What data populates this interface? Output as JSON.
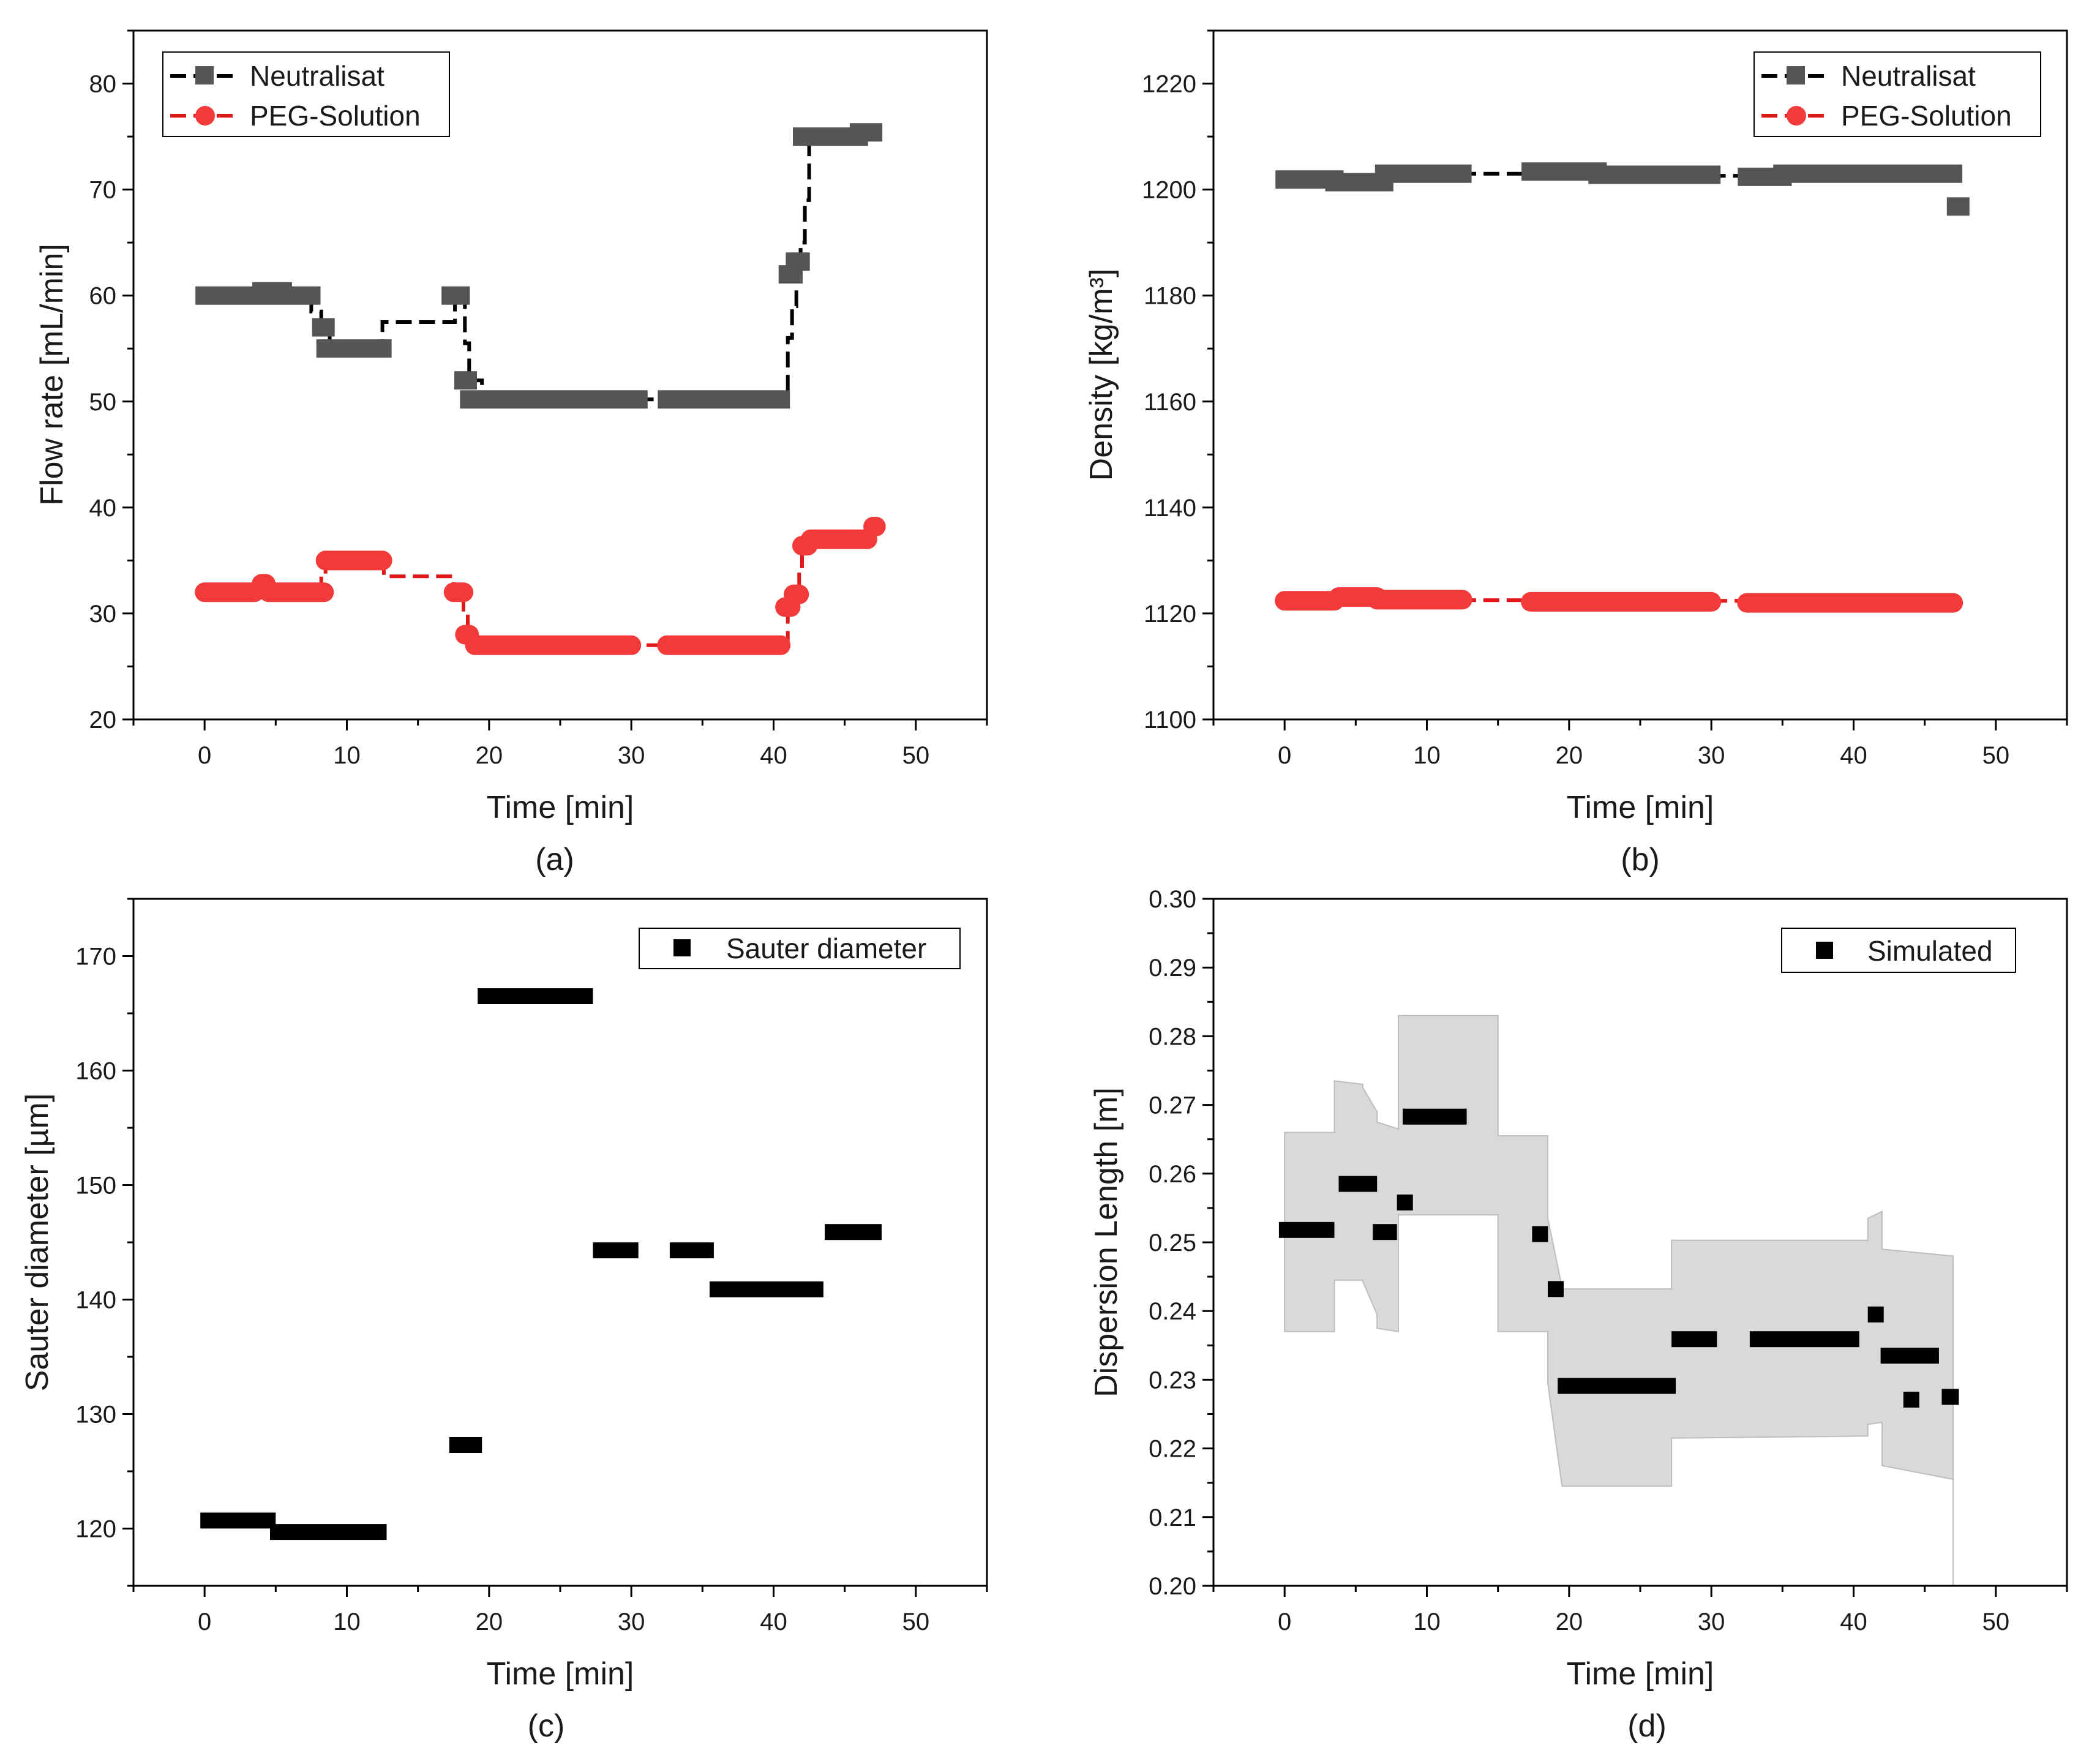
{
  "chart_data": [
    {
      "panel_label": "(a)",
      "type": "line",
      "xlabel": "Time [min]",
      "ylabel": "Flow rate [mL/min]",
      "xlim": [
        -5,
        55
      ],
      "ylim": [
        20,
        85
      ],
      "xticks": [
        0,
        10,
        20,
        30,
        40,
        50
      ],
      "yticks": [
        20,
        30,
        40,
        50,
        60,
        70,
        80
      ],
      "legend_position": "top-left",
      "colors": {
        "Neutralisat": "#555555",
        "PEG-Solution": "#f23a3a",
        "line_Neutralisat": "#000000",
        "line_PEG-Solution": "#e01818"
      },
      "series": [
        {
          "name": "Neutralisat",
          "marker": "square",
          "line_style": "dashed",
          "line_x": [
            0,
            1,
            2,
            3,
            4,
            5,
            6,
            7,
            7.5,
            8.2,
            8.8,
            9.5,
            11,
            12.5,
            12.5,
            15,
            17.5,
            17.6,
            18,
            18.3,
            18.6,
            19.5,
            25,
            30,
            32.5,
            35,
            38,
            40,
            40.6,
            41,
            41.3,
            41.6,
            41.9,
            42.2,
            42.5,
            44,
            46,
            47
          ],
          "line_y": [
            60,
            59.9,
            60,
            60.2,
            60.1,
            59.8,
            59.9,
            59.7,
            58.5,
            57,
            55,
            55,
            55,
            55,
            57.5,
            57.5,
            57.5,
            60,
            59.8,
            55.5,
            52,
            50.3,
            50.2,
            50.2,
            50.3,
            50.2,
            50.3,
            50.2,
            50.3,
            56,
            59,
            62,
            65,
            69,
            74.8,
            75,
            75.1,
            75.4
          ],
          "markers": [
            {
              "x0": 0,
              "x1": 7.5,
              "y": 60.0
            },
            {
              "x0": 4,
              "x1": 5.5,
              "y": 60.4
            },
            {
              "x0": 8.2,
              "x1": 8.5,
              "y": 57.0
            },
            {
              "x0": 8.5,
              "x1": 12.5,
              "y": 55.0
            },
            {
              "x0": 17.3,
              "x1": 18.0,
              "y": 60.0
            },
            {
              "x0": 18.2,
              "x1": 18.5,
              "y": 52.0
            },
            {
              "x0": 18.6,
              "x1": 30.5,
              "y": 50.2
            },
            {
              "x0": 32.5,
              "x1": 40.5,
              "y": 50.2
            },
            {
              "x0": 41.0,
              "x1": 41.4,
              "y": 62.0
            },
            {
              "x0": 41.5,
              "x1": 41.9,
              "y": 63.2
            },
            {
              "x0": 42.0,
              "x1": 46.0,
              "y": 75.0
            },
            {
              "x0": 46.0,
              "x1": 47.0,
              "y": 75.4
            }
          ]
        },
        {
          "name": "PEG-Solution",
          "marker": "circle",
          "line_style": "dashed",
          "line_x": [
            0,
            4,
            5,
            7.5,
            8.2,
            8.5,
            12.5,
            12.6,
            15,
            17.2,
            17.5,
            18,
            18.2,
            18.5,
            19,
            25,
            30,
            32.5,
            38,
            40.6,
            41,
            41.5,
            41.8,
            42.0,
            42.3,
            44,
            46.5,
            47
          ],
          "line_y": [
            32,
            32,
            32,
            32,
            33.5,
            35,
            35,
            33.5,
            33.5,
            33.5,
            32,
            32,
            30,
            28,
            27,
            27,
            27,
            27,
            27,
            27,
            30.6,
            31.8,
            34,
            36.5,
            37,
            37,
            37,
            38
          ],
          "markers": [
            {
              "x0": 0,
              "x1": 3.5,
              "y": 32.0
            },
            {
              "x0": 4.0,
              "x1": 4.3,
              "y": 32.8
            },
            {
              "x0": 4.5,
              "x1": 8.4,
              "y": 32.0
            },
            {
              "x0": 8.5,
              "x1": 12.5,
              "y": 35.0
            },
            {
              "x0": 17.5,
              "x1": 18.2,
              "y": 32.0
            },
            {
              "x0": 18.3,
              "x1": 18.6,
              "y": 28.0
            },
            {
              "x0": 19.0,
              "x1": 30.0,
              "y": 27.0
            },
            {
              "x0": 32.5,
              "x1": 40.5,
              "y": 27.0
            },
            {
              "x0": 40.8,
              "x1": 41.2,
              "y": 30.6
            },
            {
              "x0": 41.4,
              "x1": 41.8,
              "y": 31.8
            },
            {
              "x0": 42.0,
              "x1": 42.4,
              "y": 36.4
            },
            {
              "x0": 42.6,
              "x1": 46.6,
              "y": 37.0
            },
            {
              "x0": 47.0,
              "x1": 47.2,
              "y": 38.2
            }
          ]
        }
      ]
    },
    {
      "panel_label": "(b)",
      "type": "line",
      "xlabel": "Time [min]",
      "ylabel": "Density [kg/m³]",
      "xlim": [
        -5,
        55
      ],
      "ylim": [
        1100,
        1230
      ],
      "xticks": [
        0,
        10,
        20,
        30,
        40,
        50
      ],
      "yticks": [
        1100,
        1120,
        1140,
        1160,
        1180,
        1200,
        1220
      ],
      "legend_position": "top-right",
      "colors": {
        "Neutralisat": "#555555",
        "PEG-Solution": "#f23a3a",
        "line_Neutralisat": "#000000",
        "line_PEG-Solution": "#e01818"
      },
      "series": [
        {
          "name": "Neutralisat",
          "marker": "square",
          "line_style": "dashed",
          "line_x": [
            0,
            3,
            6,
            7,
            9,
            12.5,
            15,
            17.5,
            20,
            25,
            30,
            32.5,
            35,
            40,
            44,
            47
          ],
          "line_y": [
            1202,
            1201.5,
            1201.5,
            1203,
            1203,
            1203,
            1203,
            1203.4,
            1203,
            1202.8,
            1202.6,
            1202.4,
            1203,
            1203,
            1203,
            1202
          ],
          "markers": [
            {
              "x0": 0,
              "x1": 3.5,
              "y": 1201.9
            },
            {
              "x0": 3.5,
              "x1": 7.0,
              "y": 1201.4
            },
            {
              "x0": 7.0,
              "x1": 12.5,
              "y": 1203.0
            },
            {
              "x0": 17.3,
              "x1": 22.0,
              "y": 1203.4
            },
            {
              "x0": 22.0,
              "x1": 30.0,
              "y": 1202.8
            },
            {
              "x0": 32.5,
              "x1": 35.0,
              "y": 1202.4
            },
            {
              "x0": 35.0,
              "x1": 47.0,
              "y": 1203.0
            },
            {
              "x0": 47.2,
              "x1": 47.5,
              "y": 1196.8
            }
          ]
        },
        {
          "name": "PEG-Solution",
          "marker": "circle",
          "line_style": "dashed",
          "line_x": [
            0,
            3,
            4,
            7,
            12.5,
            15,
            17.5,
            20,
            25,
            30,
            32.5,
            40,
            41,
            47
          ],
          "line_y": [
            1122.5,
            1122.2,
            1123.2,
            1122.8,
            1122.5,
            1122.5,
            1122.3,
            1122,
            1122.2,
            1122.4,
            1121.9,
            1122,
            1121.6,
            1122
          ],
          "markers": [
            {
              "x0": 0,
              "x1": 3.5,
              "y": 1122.4
            },
            {
              "x0": 3.8,
              "x1": 6.5,
              "y": 1123.1
            },
            {
              "x0": 6.5,
              "x1": 12.5,
              "y": 1122.6
            },
            {
              "x0": 17.3,
              "x1": 30.0,
              "y": 1122.2
            },
            {
              "x0": 32.5,
              "x1": 47.0,
              "y": 1122.0
            }
          ]
        }
      ]
    },
    {
      "panel_label": "(c)",
      "type": "scatter",
      "xlabel": "Time [min]",
      "ylabel": "Sauter diameter [µm]",
      "xlim": [
        -5,
        55
      ],
      "ylim": [
        115,
        175
      ],
      "xticks": [
        0,
        10,
        20,
        30,
        40,
        50
      ],
      "yticks": [
        120,
        130,
        140,
        150,
        160,
        170
      ],
      "legend_position": "top-right",
      "colors": {
        "Sauter diameter": "#000000"
      },
      "series": [
        {
          "name": "Sauter diameter",
          "marker": "square",
          "segments": [
            {
              "x0": -0.3,
              "x1": 5.0,
              "y": 120.7
            },
            {
              "x0": 4.6,
              "x1": 12.8,
              "y": 119.7
            },
            {
              "x0": 17.2,
              "x1": 19.5,
              "y": 127.3
            },
            {
              "x0": 19.2,
              "x1": 27.3,
              "y": 166.5
            },
            {
              "x0": 27.3,
              "x1": 30.5,
              "y": 144.3
            },
            {
              "x0": 32.7,
              "x1": 35.8,
              "y": 144.3
            },
            {
              "x0": 35.5,
              "x1": 43.5,
              "y": 140.9
            },
            {
              "x0": 43.6,
              "x1": 47.6,
              "y": 145.9
            }
          ]
        }
      ]
    },
    {
      "panel_label": "(d)",
      "type": "area",
      "xlabel": "Time [min]",
      "ylabel": "Dispersion Length [m]",
      "xlim": [
        -5,
        55
      ],
      "ylim": [
        0.2,
        0.3
      ],
      "xticks": [
        0,
        10,
        20,
        30,
        40,
        50
      ],
      "yticks": [
        0.2,
        0.21,
        0.22,
        0.23,
        0.24,
        0.25,
        0.26,
        0.27,
        0.28,
        0.29,
        0.3
      ],
      "ytick_labels": [
        "0.20",
        "0.21",
        "0.22",
        "0.23",
        "0.24",
        "0.25",
        "0.26",
        "0.27",
        "0.28",
        "0.29",
        "0.30"
      ],
      "legend_position": "top-right",
      "colors": {
        "Simulated": "#000000",
        "band": "#d9d9d9",
        "band_edge": "#bdbdbd"
      },
      "band": {
        "x": [
          0,
          3.5,
          3.5,
          5.5,
          5.5,
          6.5,
          6.5,
          8.0,
          8.0,
          15.0,
          15.0,
          18.5,
          18.5,
          19.5,
          19.5,
          27.2,
          27.2,
          41.0,
          41.0,
          42.0,
          42.0,
          47.0,
          47.0
        ],
        "upper": [
          0.266,
          0.266,
          0.2735,
          0.273,
          0.2725,
          0.269,
          0.2675,
          0.2665,
          0.283,
          0.283,
          0.2655,
          0.2655,
          0.2535,
          0.2435,
          0.2432,
          0.2432,
          0.2503,
          0.2503,
          0.2535,
          0.2545,
          0.249,
          0.248,
          0.2422
        ],
        "lower": [
          0.237,
          0.237,
          0.2445,
          0.2445,
          0.2443,
          0.2395,
          0.2375,
          0.237,
          0.254,
          0.254,
          0.237,
          0.237,
          0.2295,
          0.2145,
          0.2145,
          0.2145,
          0.2215,
          0.2218,
          0.2235,
          0.2238,
          0.2175,
          0.2155,
          0.2
        ]
      },
      "series": [
        {
          "name": "Simulated",
          "marker": "square",
          "segments": [
            {
              "x0": -0.4,
              "x1": 3.5,
              "y": 0.2518
            },
            {
              "x0": 3.8,
              "x1": 6.5,
              "y": 0.2585
            },
            {
              "x0": 6.2,
              "x1": 7.9,
              "y": 0.2515
            },
            {
              "x0": 7.9,
              "x1": 8.4,
              "y": 0.2558
            },
            {
              "x0": 8.3,
              "x1": 12.8,
              "y": 0.2683
            },
            {
              "x0": 17.4,
              "x1": 18.5,
              "y": 0.2512
            },
            {
              "x0": 18.5,
              "x1": 19.3,
              "y": 0.2432
            },
            {
              "x0": 19.2,
              "x1": 27.5,
              "y": 0.2291
            },
            {
              "x0": 27.2,
              "x1": 30.4,
              "y": 0.2359
            },
            {
              "x0": 32.7,
              "x1": 40.4,
              "y": 0.2359
            },
            {
              "x0": 41.0,
              "x1": 41.9,
              "y": 0.2395
            },
            {
              "x0": 41.9,
              "x1": 46.0,
              "y": 0.2335
            },
            {
              "x0": 43.5,
              "x1": 44.0,
              "y": 0.2271
            },
            {
              "x0": 46.2,
              "x1": 47.4,
              "y": 0.2275
            }
          ]
        }
      ]
    }
  ]
}
